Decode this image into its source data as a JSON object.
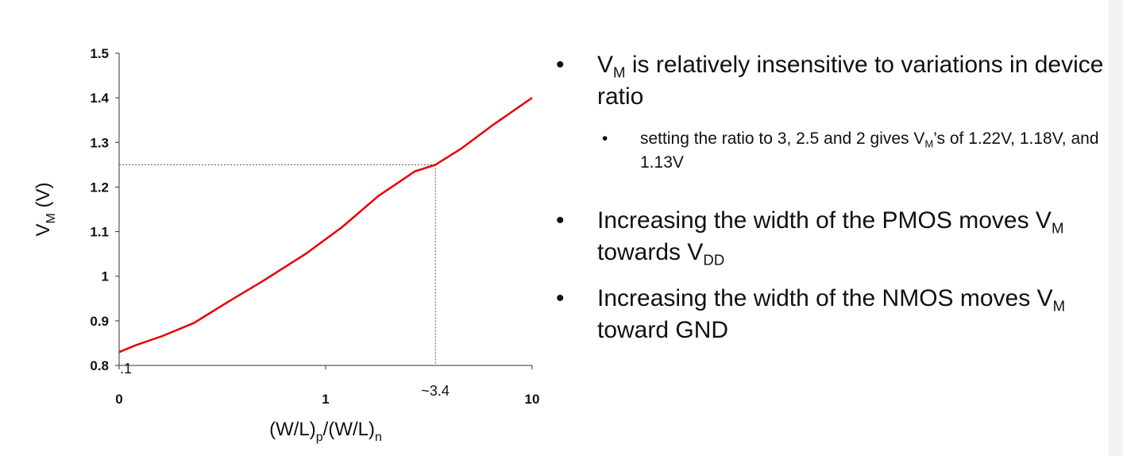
{
  "chart_data": {
    "type": "line",
    "xlabel_parts": [
      "(W/L)",
      "p",
      "/(W/L)",
      "n"
    ],
    "ylabel_parts": [
      "V",
      "M",
      " (V)"
    ],
    "xscale": "log",
    "xlim": [
      0.1,
      10
    ],
    "ylim": [
      0.8,
      1.5
    ],
    "x_tick_labels": [
      "0",
      "1",
      "10"
    ],
    "y_tick_labels": [
      "0.8",
      "0.9",
      "1",
      "1.1",
      "1.2",
      "1.3",
      "1.4",
      "1.5"
    ],
    "grid": false,
    "series": [
      {
        "color": "#e60000",
        "x": [
          0.1,
          0.12,
          0.16,
          0.23,
          0.33,
          0.5,
          0.8,
          1.2,
          1.8,
          2.7,
          3.4,
          4.5,
          6.5,
          10
        ],
        "y": [
          0.83,
          0.845,
          0.865,
          0.895,
          0.94,
          0.99,
          1.05,
          1.11,
          1.18,
          1.235,
          1.25,
          1.285,
          1.34,
          1.4
        ]
      }
    ],
    "annotations": [
      {
        "text": ".1",
        "x": 0.1,
        "y": 0.8
      },
      {
        "text": "~3.4",
        "x": 3.4,
        "y": 1.25
      }
    ]
  },
  "bullets": [
    {
      "parts": [
        [
          "V",
          ""
        ],
        [
          "M",
          "sub"
        ],
        [
          " is relatively insensitive to variations in device ratio",
          ""
        ]
      ],
      "children": [
        {
          "parts": [
            [
              " setting the ratio to 3, 2.5 and 2 gives V",
              ""
            ],
            [
              "M",
              "sub"
            ],
            [
              "’s of 1.22V, 1.18V, and 1.13V",
              ""
            ]
          ]
        }
      ]
    },
    {
      "parts": [
        [
          " Increasing the width of the PMOS moves V",
          ""
        ],
        [
          "M",
          "sub"
        ],
        [
          " towards V",
          ""
        ],
        [
          "DD",
          "sub"
        ]
      ],
      "children": []
    },
    {
      "parts": [
        [
          " Increasing the width of the NMOS moves V",
          ""
        ],
        [
          "M",
          "sub"
        ],
        [
          " toward GND",
          ""
        ]
      ],
      "children": []
    }
  ]
}
